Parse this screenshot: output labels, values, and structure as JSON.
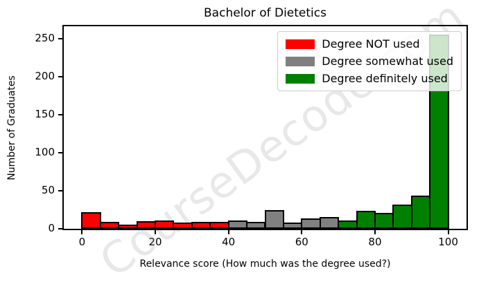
{
  "chart_data": {
    "type": "bar",
    "title": "Bachelor of Dietetics",
    "xlabel": "Relevance score (How much was the degree used?)",
    "ylabel": "Number of Graduates",
    "xticks": [
      0,
      20,
      40,
      60,
      80,
      100
    ],
    "yticks": [
      0,
      50,
      100,
      150,
      200,
      250
    ],
    "xlim": [
      -5,
      105
    ],
    "ylim": [
      0,
      266
    ],
    "grid": false,
    "legend_position": "upper right",
    "bar_edge_color": "#000000",
    "bin_width": 5,
    "groups": [
      {
        "name": "Degree NOT used",
        "color": "#ff0000"
      },
      {
        "name": "Degree somewhat used",
        "color": "#808080"
      },
      {
        "name": "Degree definitely used",
        "color": "#008000"
      }
    ],
    "bars": [
      {
        "start": 0,
        "end": 5,
        "value": 20,
        "group": 0
      },
      {
        "start": 5,
        "end": 10,
        "value": 7,
        "group": 0
      },
      {
        "start": 10,
        "end": 15,
        "value": 4,
        "group": 0
      },
      {
        "start": 15,
        "end": 20,
        "value": 8,
        "group": 0
      },
      {
        "start": 20,
        "end": 25,
        "value": 9,
        "group": 0
      },
      {
        "start": 25,
        "end": 30,
        "value": 6,
        "group": 0
      },
      {
        "start": 30,
        "end": 35,
        "value": 7,
        "group": 0
      },
      {
        "start": 35,
        "end": 40,
        "value": 7,
        "group": 0
      },
      {
        "start": 40,
        "end": 45,
        "value": 9,
        "group": 1
      },
      {
        "start": 45,
        "end": 50,
        "value": 7,
        "group": 1
      },
      {
        "start": 50,
        "end": 55,
        "value": 23,
        "group": 1
      },
      {
        "start": 55,
        "end": 60,
        "value": 6,
        "group": 1
      },
      {
        "start": 60,
        "end": 65,
        "value": 12,
        "group": 1
      },
      {
        "start": 65,
        "end": 70,
        "value": 14,
        "group": 1
      },
      {
        "start": 70,
        "end": 75,
        "value": 9,
        "group": 2
      },
      {
        "start": 75,
        "end": 80,
        "value": 22,
        "group": 2
      },
      {
        "start": 80,
        "end": 85,
        "value": 19,
        "group": 2
      },
      {
        "start": 85,
        "end": 90,
        "value": 30,
        "group": 2
      },
      {
        "start": 90,
        "end": 95,
        "value": 42,
        "group": 2
      },
      {
        "start": 95,
        "end": 100,
        "value": 253,
        "group": 2
      }
    ]
  },
  "watermark": {
    "text": "CourseDecode.com",
    "color": "#808080"
  }
}
